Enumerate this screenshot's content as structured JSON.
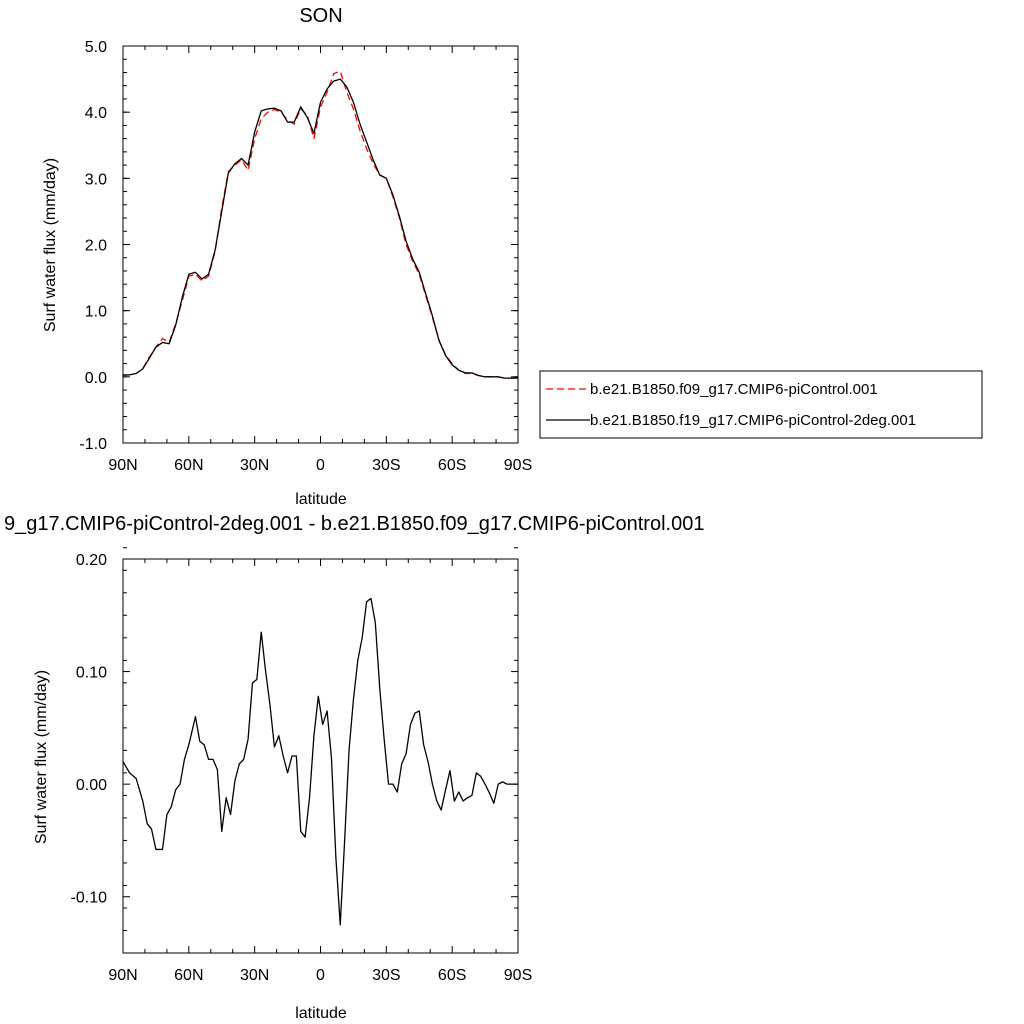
{
  "colors": {
    "series_red": "#ff0000",
    "series_black": "#000000",
    "axis": "#000000",
    "legend_border": "#000000"
  },
  "chart_data": [
    {
      "type": "line",
      "title": "SON",
      "xlabel": "latitude",
      "ylabel": "Surf water flux (mm/day)",
      "xlim": [
        90,
        -90
      ],
      "ylim": [
        -1.0,
        5.0
      ],
      "xticks": [
        90,
        60,
        30,
        0,
        -30,
        -60,
        -90
      ],
      "xtick_labels": [
        "90N",
        "60N",
        "30N",
        "0",
        "30S",
        "60S",
        "90S"
      ],
      "yticks": [
        -1.0,
        0.0,
        1.0,
        2.0,
        3.0,
        4.0,
        5.0
      ],
      "ytick_labels": [
        "-1.0",
        "0.0",
        "1.0",
        "2.0",
        "3.0",
        "4.0",
        "5.0"
      ],
      "grid": false,
      "legend": "right",
      "x": [
        90,
        87,
        84,
        81,
        78,
        75,
        72,
        69,
        66,
        63,
        60,
        57,
        54,
        51,
        48,
        45,
        42,
        39,
        36,
        33,
        30,
        27,
        24,
        21,
        18,
        15,
        12,
        9,
        6,
        3,
        0,
        -3,
        -6,
        -9,
        -12,
        -15,
        -18,
        -21,
        -24,
        -27,
        -30,
        -33,
        -36,
        -39,
        -42,
        -45,
        -48,
        -51,
        -54,
        -57,
        -60,
        -63,
        -66,
        -69,
        -72,
        -75,
        -78,
        -81,
        -84,
        -87,
        -90
      ],
      "series": [
        {
          "name": "b.e21.B1850.f09_g17.CMIP6-piControl.001",
          "color": "#ff0000",
          "dash": "dashed",
          "values": [
            0.02,
            0.03,
            0.05,
            0.12,
            0.3,
            0.45,
            0.58,
            0.52,
            0.8,
            1.15,
            1.52,
            1.55,
            1.45,
            1.52,
            1.9,
            2.55,
            3.1,
            3.2,
            3.28,
            3.12,
            3.6,
            3.9,
            4.0,
            4.04,
            4.0,
            3.88,
            3.82,
            4.05,
            3.95,
            3.6,
            4.08,
            4.3,
            4.58,
            4.62,
            4.3,
            4.05,
            3.72,
            3.45,
            3.22,
            3.05,
            3.0,
            2.72,
            2.4,
            2.0,
            1.75,
            1.55,
            1.22,
            0.9,
            0.55,
            0.33,
            0.2,
            0.1,
            0.05,
            0.05,
            0.02,
            0.0,
            0.0,
            0.0,
            -0.02,
            -0.02,
            -0.02
          ]
        },
        {
          "name": "b.e21.B1850.f19_g17.CMIP6-piControl-2deg.001",
          "color": "#000000",
          "dash": "solid",
          "values": [
            0.03,
            0.03,
            0.05,
            0.12,
            0.28,
            0.45,
            0.52,
            0.5,
            0.78,
            1.2,
            1.55,
            1.58,
            1.48,
            1.55,
            1.92,
            2.5,
            3.08,
            3.22,
            3.3,
            3.2,
            3.7,
            4.02,
            4.05,
            4.06,
            4.02,
            3.85,
            3.85,
            4.08,
            3.92,
            3.68,
            4.15,
            4.35,
            4.47,
            4.5,
            4.38,
            4.15,
            3.82,
            3.55,
            3.28,
            3.05,
            3.0,
            2.75,
            2.42,
            2.05,
            1.78,
            1.58,
            1.25,
            0.92,
            0.55,
            0.32,
            0.18,
            0.1,
            0.06,
            0.06,
            0.02,
            0.0,
            0.0,
            0.0,
            -0.02,
            -0.02,
            -0.02
          ]
        }
      ]
    },
    {
      "type": "line",
      "title": "9_g17.CMIP6-piControl-2deg.001 - b.e21.B1850.f09_g17.CMIP6-piControl.001",
      "xlabel": "latitude",
      "ylabel": "Surf water flux (mm/day)",
      "xlim": [
        90,
        -90
      ],
      "ylim": [
        -0.15,
        0.2
      ],
      "xticks": [
        90,
        60,
        30,
        0,
        -30,
        -60,
        -90
      ],
      "xtick_labels": [
        "90N",
        "60N",
        "30N",
        "0",
        "30S",
        "60S",
        "90S"
      ],
      "yticks": [
        -0.1,
        0.0,
        0.1,
        0.2
      ],
      "ytick_labels": [
        "-0.10",
        "0.00",
        "0.10",
        "0.20"
      ],
      "grid": false,
      "series": [
        {
          "name": "",
          "color": "#000000",
          "dash": "solid",
          "x": [
            90,
            87,
            84,
            81,
            79,
            77,
            75,
            72,
            70,
            68,
            66,
            64,
            62,
            60,
            57,
            55,
            53,
            51,
            49,
            47,
            45,
            43,
            41,
            39,
            37,
            35,
            33,
            31,
            29,
            27,
            25,
            23,
            21,
            19,
            17,
            15,
            13,
            11,
            9,
            7,
            5,
            3,
            1,
            -1,
            -3,
            -5,
            -7,
            -9,
            -11,
            -13,
            -15,
            -17,
            -19,
            -21,
            -23,
            -25,
            -27,
            -29,
            -31,
            -33,
            -35,
            -37,
            -39,
            -41,
            -43,
            -45,
            -47,
            -49,
            -51,
            -53,
            -55,
            -57,
            -59,
            -61,
            -63,
            -65,
            -67,
            -69,
            -71,
            -73,
            -75,
            -77,
            -79,
            -81,
            -83,
            -85,
            -87,
            -90
          ],
          "values": [
            0.02,
            0.01,
            0.005,
            -0.015,
            -0.035,
            -0.04,
            -0.058,
            -0.058,
            -0.027,
            -0.02,
            -0.005,
            0.0,
            0.022,
            0.035,
            0.06,
            0.038,
            0.035,
            0.022,
            0.022,
            0.013,
            -0.042,
            -0.012,
            -0.027,
            0.003,
            0.018,
            0.022,
            0.04,
            0.09,
            0.093,
            0.135,
            0.1,
            0.07,
            0.033,
            0.043,
            0.025,
            0.01,
            0.025,
            0.025,
            -0.042,
            -0.047,
            -0.012,
            0.043,
            0.078,
            0.053,
            0.065,
            0.023,
            -0.065,
            -0.125,
            -0.05,
            0.03,
            0.075,
            0.11,
            0.13,
            0.162,
            0.165,
            0.143,
            0.085,
            0.04,
            0.0,
            0.0,
            -0.007,
            0.018,
            0.027,
            0.053,
            0.063,
            0.065,
            0.035,
            0.02,
            0.0,
            -0.015,
            -0.023,
            -0.005,
            0.012,
            -0.015,
            -0.007,
            -0.015,
            -0.012,
            -0.01,
            0.01,
            0.007,
            0.0,
            -0.008,
            -0.017,
            0.0,
            0.002,
            0.0,
            0.0,
            0.0
          ]
        }
      ]
    }
  ]
}
